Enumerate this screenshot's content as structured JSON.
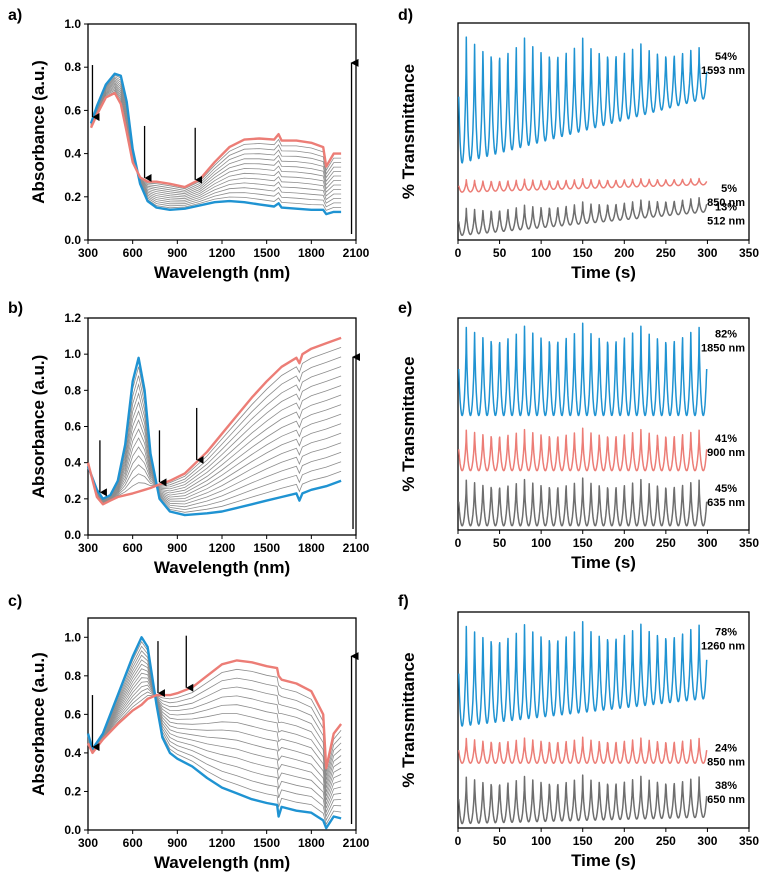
{
  "colors": {
    "blue": "#1f93d2",
    "red": "#ec7d76",
    "gray": "#6e6e6e",
    "thin_gray": "#8c8c8c",
    "axis": "#000000"
  },
  "chart_data": [
    {
      "id": "a",
      "type": "line",
      "panel_label": "a)",
      "xlabel": "Wavelength (nm)",
      "ylabel": "Absorbance (a.u.)",
      "xlim": [
        300,
        2100
      ],
      "ylim": [
        0,
        1.0
      ],
      "xticks": [
        300,
        600,
        900,
        1200,
        1500,
        1800,
        2100
      ],
      "yticks": [
        0.0,
        0.2,
        0.4,
        0.6,
        0.8,
        1.0
      ],
      "ytick_labels": [
        "0.0",
        "0.2",
        "0.4",
        "0.6",
        "0.8",
        "1.0"
      ],
      "series": [
        {
          "name": "initial (blue)",
          "x": [
            320,
            360,
            420,
            480,
            520,
            560,
            600,
            650,
            700,
            760,
            850,
            950,
            1050,
            1150,
            1250,
            1350,
            1450,
            1550,
            1580,
            1600,
            1700,
            1800,
            1880,
            1900,
            1950,
            2000
          ],
          "y": [
            0.54,
            0.62,
            0.72,
            0.77,
            0.76,
            0.64,
            0.42,
            0.26,
            0.18,
            0.15,
            0.14,
            0.145,
            0.16,
            0.175,
            0.18,
            0.175,
            0.165,
            0.155,
            0.17,
            0.15,
            0.145,
            0.14,
            0.14,
            0.12,
            0.13,
            0.13
          ]
        },
        {
          "name": "final (red)",
          "x": [
            320,
            360,
            420,
            480,
            520,
            560,
            600,
            650,
            700,
            760,
            850,
            950,
            1050,
            1150,
            1250,
            1350,
            1450,
            1550,
            1580,
            1600,
            1700,
            1800,
            1880,
            1900,
            1950,
            2000
          ],
          "y": [
            0.52,
            0.58,
            0.66,
            0.68,
            0.63,
            0.5,
            0.36,
            0.29,
            0.27,
            0.27,
            0.26,
            0.245,
            0.28,
            0.36,
            0.43,
            0.465,
            0.47,
            0.465,
            0.49,
            0.46,
            0.46,
            0.45,
            0.43,
            0.34,
            0.4,
            0.4
          ]
        }
      ],
      "intermediate_curves": 12,
      "arrows_down_at": [
        330,
        680,
        1020
      ],
      "arrow_up_at": 2070
    },
    {
      "id": "b",
      "type": "line",
      "panel_label": "b)",
      "xlabel": "Wavelength (nm)",
      "ylabel": "Absorbance (a.u.)",
      "xlim": [
        300,
        2100
      ],
      "ylim": [
        0,
        1.2
      ],
      "xticks": [
        300,
        600,
        900,
        1200,
        1500,
        1800,
        2100
      ],
      "yticks": [
        0.0,
        0.2,
        0.4,
        0.6,
        0.8,
        1.0,
        1.2
      ],
      "ytick_labels": [
        "0.0",
        "0.2",
        "0.4",
        "0.6",
        "0.8",
        "1.0",
        "1.2"
      ],
      "series": [
        {
          "name": "initial (blue)",
          "x": [
            300,
            360,
            400,
            450,
            500,
            550,
            600,
            640,
            680,
            720,
            780,
            850,
            950,
            1100,
            1200,
            1300,
            1400,
            1500,
            1600,
            1700,
            1720,
            1740,
            1800,
            1900,
            2000
          ],
          "y": [
            0.38,
            0.25,
            0.2,
            0.22,
            0.3,
            0.5,
            0.85,
            0.98,
            0.8,
            0.45,
            0.2,
            0.13,
            0.11,
            0.12,
            0.13,
            0.15,
            0.17,
            0.19,
            0.21,
            0.23,
            0.19,
            0.23,
            0.25,
            0.27,
            0.3
          ]
        },
        {
          "name": "final (red)",
          "x": [
            300,
            360,
            400,
            450,
            500,
            550,
            600,
            640,
            680,
            720,
            780,
            850,
            950,
            1100,
            1200,
            1300,
            1400,
            1500,
            1600,
            1700,
            1720,
            1740,
            1800,
            1900,
            2000
          ],
          "y": [
            0.4,
            0.21,
            0.17,
            0.19,
            0.21,
            0.22,
            0.23,
            0.24,
            0.25,
            0.26,
            0.28,
            0.3,
            0.34,
            0.46,
            0.56,
            0.66,
            0.76,
            0.85,
            0.93,
            0.98,
            0.95,
            1.0,
            1.03,
            1.06,
            1.09
          ]
        }
      ],
      "intermediate_curves": 14,
      "arrows_down_at": [
        380,
        780,
        1030
      ],
      "arrow_up_at": 2080
    },
    {
      "id": "c",
      "type": "line",
      "panel_label": "c)",
      "xlabel": "Wavelength (nm)",
      "ylabel": "Absorbance (a.u.)",
      "xlim": [
        300,
        2100
      ],
      "ylim": [
        0,
        1.1
      ],
      "xticks": [
        300,
        600,
        900,
        1200,
        1500,
        1800,
        2100
      ],
      "yticks": [
        0.0,
        0.2,
        0.4,
        0.6,
        0.8,
        1.0
      ],
      "ytick_labels": [
        "0.0",
        "0.2",
        "0.4",
        "0.6",
        "0.8",
        "1.0"
      ],
      "series": [
        {
          "name": "initial (blue)",
          "x": [
            300,
            330,
            400,
            500,
            600,
            660,
            700,
            760,
            800,
            850,
            900,
            1000,
            1100,
            1200,
            1300,
            1400,
            1500,
            1570,
            1580,
            1600,
            1700,
            1800,
            1880,
            1900,
            1950,
            2000
          ],
          "y": [
            0.5,
            0.42,
            0.5,
            0.7,
            0.9,
            1.0,
            0.95,
            0.65,
            0.48,
            0.4,
            0.37,
            0.33,
            0.27,
            0.22,
            0.19,
            0.16,
            0.14,
            0.13,
            0.07,
            0.12,
            0.1,
            0.09,
            0.05,
            0.01,
            0.07,
            0.06
          ]
        },
        {
          "name": "final (red)",
          "x": [
            300,
            330,
            400,
            500,
            600,
            660,
            700,
            760,
            800,
            850,
            900,
            1000,
            1100,
            1200,
            1300,
            1400,
            1500,
            1570,
            1580,
            1600,
            1700,
            1800,
            1880,
            1900,
            1950,
            2000
          ],
          "y": [
            0.45,
            0.4,
            0.47,
            0.55,
            0.62,
            0.65,
            0.68,
            0.7,
            0.7,
            0.7,
            0.71,
            0.74,
            0.8,
            0.86,
            0.88,
            0.87,
            0.85,
            0.84,
            0.8,
            0.78,
            0.76,
            0.72,
            0.6,
            0.32,
            0.5,
            0.55
          ]
        }
      ],
      "intermediate_curves": 14,
      "arrows_down_at": [
        330,
        770,
        960
      ],
      "arrow_up_at": 2070
    },
    {
      "id": "d",
      "type": "line",
      "panel_label": "d)",
      "xlabel": "Time (s)",
      "ylabel": "% Transmittance",
      "xlim": [
        0,
        350
      ],
      "xticks": [
        0,
        50,
        100,
        150,
        200,
        250,
        300,
        350
      ],
      "cycles": 30,
      "duration_s": 300,
      "series": [
        {
          "name": "1593 nm",
          "color": "blue",
          "label_pct": "54%",
          "label_nm": "1593 nm",
          "top_start": 0.965,
          "top_end": 0.895,
          "bottom_start": 0.35,
          "bottom_end": 0.655
        },
        {
          "name": "850 nm",
          "color": "red",
          "label_pct": "5%",
          "label_nm": "850 nm",
          "top_start": 0.28,
          "top_end": 0.285,
          "bottom_start": 0.22,
          "bottom_end": 0.255
        },
        {
          "name": "512 nm",
          "color": "gray",
          "label_pct": "13%",
          "label_nm": "512 nm",
          "top_start": 0.15,
          "top_end": 0.2,
          "bottom_start": 0.02,
          "bottom_end": 0.13
        }
      ]
    },
    {
      "id": "e",
      "type": "line",
      "panel_label": "e)",
      "xlabel": "Time (s)",
      "ylabel": "% Transmittance",
      "xlim": [
        0,
        350
      ],
      "xticks": [
        0,
        50,
        100,
        150,
        200,
        250,
        300,
        350
      ],
      "cycles": 30,
      "duration_s": 300,
      "series": [
        {
          "name": "1850 nm",
          "color": "blue",
          "label_pct": "82%",
          "label_nm": "1850 nm",
          "top_start": 0.975,
          "top_end": 0.975,
          "bottom_start": 0.54,
          "bottom_end": 0.54
        },
        {
          "name": "900 nm",
          "color": "red",
          "label_pct": "41%",
          "label_nm": "900 nm",
          "top_start": 0.48,
          "top_end": 0.48,
          "bottom_start": 0.28,
          "bottom_end": 0.28
        },
        {
          "name": "635 nm",
          "color": "gray",
          "label_pct": "45%",
          "label_nm": "635 nm",
          "top_start": 0.245,
          "top_end": 0.245,
          "bottom_start": 0.02,
          "bottom_end": 0.02
        }
      ]
    },
    {
      "id": "f",
      "type": "line",
      "panel_label": "f)",
      "xlabel": "Time (s)",
      "ylabel": "% Transmittance",
      "xlim": [
        0,
        350
      ],
      "xticks": [
        0,
        50,
        100,
        150,
        200,
        250,
        300,
        350
      ],
      "cycles": 30,
      "duration_s": 300,
      "series": [
        {
          "name": "1260 nm",
          "color": "blue",
          "label_pct": "78%",
          "label_nm": "1260 nm",
          "top_start": 0.955,
          "top_end": 0.955,
          "bottom_start": 0.47,
          "bottom_end": 0.6
        },
        {
          "name": "850 nm",
          "color": "red",
          "label_pct": "24%",
          "label_nm": "850 nm",
          "top_start": 0.42,
          "top_end": 0.42,
          "bottom_start": 0.3,
          "bottom_end": 0.3
        },
        {
          "name": "650 nm",
          "color": "gray",
          "label_pct": "38%",
          "label_nm": "650 nm",
          "top_start": 0.245,
          "top_end": 0.245,
          "bottom_start": 0.02,
          "bottom_end": 0.05
        }
      ]
    }
  ]
}
